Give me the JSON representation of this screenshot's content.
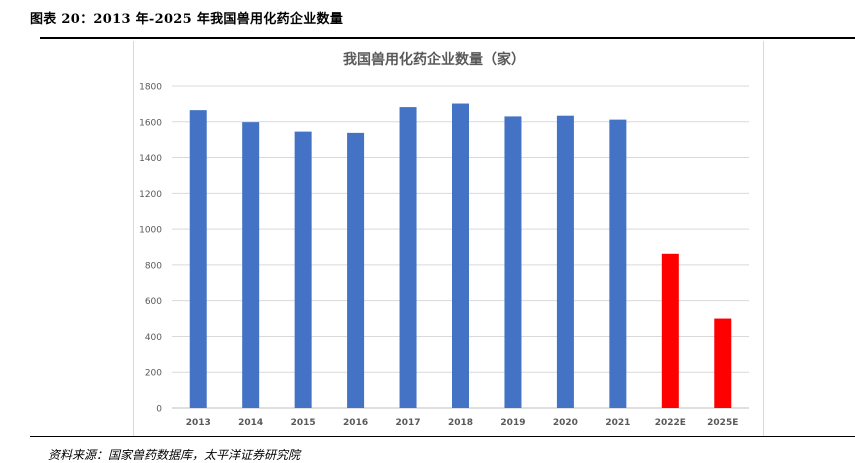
{
  "figure": {
    "caption": "图表 20：2013 年-2025 年我国兽用化药企业数量",
    "source": "资料来源：国家兽药数据库，太平洋证券研究院"
  },
  "chart_data": {
    "type": "bar",
    "title": "我国兽用化药企业数量（家）",
    "categories": [
      "2013",
      "2014",
      "2015",
      "2016",
      "2017",
      "2018",
      "2019",
      "2020",
      "2021",
      "2022E",
      "2025E"
    ],
    "values": [
      1665,
      1598,
      1545,
      1538,
      1682,
      1702,
      1630,
      1634,
      1612,
      862,
      500
    ],
    "bar_colors": [
      "#4472C4",
      "#4472C4",
      "#4472C4",
      "#4472C4",
      "#4472C4",
      "#4472C4",
      "#4472C4",
      "#4472C4",
      "#4472C4",
      "#FF0000",
      "#FF0000"
    ],
    "xlabel": "",
    "ylabel": "",
    "ylim": [
      0,
      1800
    ],
    "yticks": [
      0,
      200,
      400,
      600,
      800,
      1000,
      1200,
      1400,
      1600,
      1800
    ],
    "grid": true,
    "legend": "none"
  }
}
